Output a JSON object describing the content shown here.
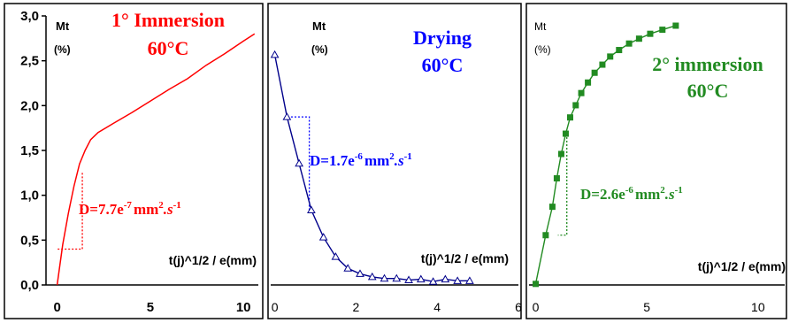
{
  "chart_data": [
    {
      "type": "line",
      "title": "1° Immersion",
      "subtitle": "60°C",
      "ylabel": "Mt",
      "yunit": "(%)",
      "xlabel": "t(j)^1/2 / e(mm)",
      "xlim": [
        -0.6,
        10.8
      ],
      "ylim": [
        0,
        3.0
      ],
      "xticks": [
        "0",
        "5",
        "10"
      ],
      "yticks": [
        "0,0",
        "0,5",
        "1,0",
        "1,5",
        "2,0",
        "2,5",
        "3,0"
      ],
      "annotation": {
        "prefix": "D=7.7e",
        "exp1": "-7",
        "unit": "mm",
        "exp2": "2",
        "s": ".s",
        "exp3": "-1"
      },
      "color": "#ff0000",
      "series": [
        {
          "x": [
            0,
            0.3,
            0.6,
            0.9,
            1.2,
            1.5,
            1.8,
            2.2,
            3,
            4,
            5,
            6,
            7,
            8,
            9,
            10,
            10.6
          ],
          "y": [
            0,
            0.45,
            0.8,
            1.1,
            1.35,
            1.5,
            1.62,
            1.7,
            1.8,
            1.92,
            2.05,
            2.18,
            2.3,
            2.45,
            2.58,
            2.72,
            2.8
          ]
        }
      ],
      "slope_guide": {
        "x": [
          0,
          1.35
        ],
        "y": [
          0.4,
          1.25
        ]
      }
    },
    {
      "type": "line",
      "title": "Drying",
      "subtitle": "60°C",
      "ylabel": "Mt",
      "yunit": "(%)",
      "xlabel": "t(j)^1/2 / e(mm)",
      "xlim": [
        -0.1,
        6
      ],
      "ylim": [
        -0.2,
        3.4
      ],
      "xticks": [
        "0",
        "2",
        "4",
        "6"
      ],
      "annotation": {
        "prefix": "D=1.7e",
        "exp1": "-6",
        "unit": "mm",
        "exp2": "2",
        "s": ".s",
        "exp3": "-1"
      },
      "color": "#00008b",
      "series": [
        {
          "x": [
            0,
            0.3,
            0.6,
            0.9,
            1.2,
            1.5,
            1.8,
            2.1,
            2.4,
            2.7,
            3.0,
            3.3,
            3.6,
            3.9,
            4.2,
            4.5,
            4.8
          ],
          "y": [
            2.9,
            2.1,
            1.5,
            0.9,
            0.55,
            0.3,
            0.15,
            0.08,
            0.04,
            0.02,
            0.02,
            0.0,
            0.01,
            -0.02,
            0.01,
            -0.01,
            -0.01
          ]
        }
      ],
      "slope_guide": {
        "x": [
          0.35,
          0.85
        ],
        "y": [
          2.1,
          0.9
        ]
      }
    },
    {
      "type": "scatter",
      "title": "2° immersion",
      "subtitle": "60°C",
      "ylabel": "Mt",
      "yunit": "(%)",
      "xlabel": "t(j)^1/2 / e(mm)",
      "xlim": [
        -0.3,
        11.2
      ],
      "ylim": [
        -0.1,
        3.3
      ],
      "xticks": [
        "0",
        "5",
        "10"
      ],
      "annotation": {
        "prefix": "D=2.6e",
        "exp1": "-6",
        "unit": "mm",
        "exp2": "2",
        "s": ".s",
        "exp3": "-1"
      },
      "color": "#228b22",
      "series": [
        {
          "x": [
            0,
            0.45,
            0.75,
            0.95,
            1.15,
            1.35,
            1.55,
            1.8,
            2.05,
            2.35,
            2.65,
            3.0,
            3.35,
            3.75,
            4.2,
            4.65,
            5.15,
            5.7,
            6.3
          ],
          "y": [
            0,
            0.6,
            0.95,
            1.3,
            1.6,
            1.85,
            2.05,
            2.2,
            2.35,
            2.48,
            2.6,
            2.7,
            2.8,
            2.88,
            2.96,
            3.02,
            3.08,
            3.13,
            3.18
          ]
        }
      ],
      "slope_guide": {
        "x": [
          1.0,
          1.4
        ],
        "y": [
          0.6,
          1.85
        ]
      }
    }
  ]
}
